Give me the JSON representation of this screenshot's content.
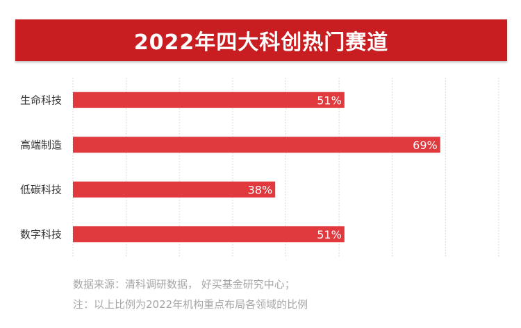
{
  "header": {
    "title": "2022年四大科创热门赛道"
  },
  "chart_data": {
    "type": "bar",
    "orientation": "horizontal",
    "title": "2022年四大科创热门赛道",
    "categories": [
      "生命科技",
      "高端制造",
      "低碳科技",
      "数字科技"
    ],
    "values": [
      51,
      69,
      38,
      51
    ],
    "value_labels": [
      "51%",
      "69%",
      "38%",
      "51%"
    ],
    "xlim": [
      0,
      80
    ],
    "grid": true,
    "bar_color": "#e0393e"
  },
  "footnote": {
    "source": "数据来源：清科调研数据， 好买基金研究中心；",
    "note": "注：以上比例为2022年机构重点布局各领域的比例"
  }
}
